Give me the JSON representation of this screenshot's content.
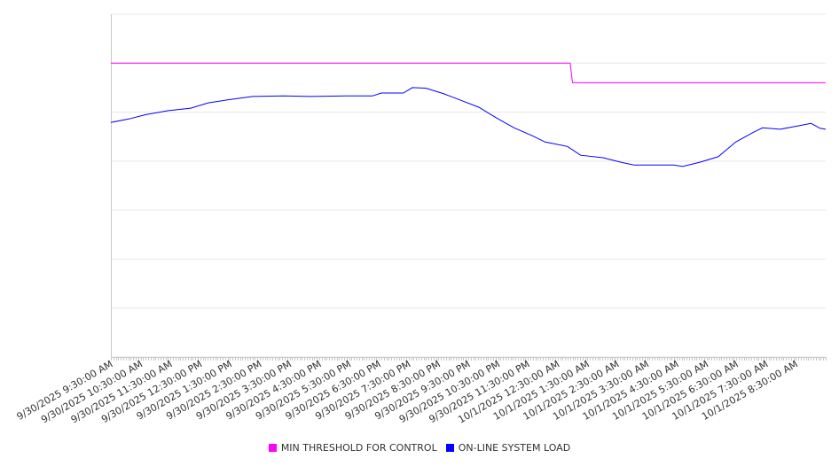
{
  "chart_data": {
    "type": "line",
    "title": "",
    "xlabel": "",
    "ylabel": "",
    "x_unit": "hours since 9/30/2025 9:30:00 AM",
    "xlim": [
      0,
      24
    ],
    "ylim": [
      0,
      7
    ],
    "y_ticks_labeled": false,
    "grid": true,
    "legend_position": "bottom",
    "x_tick_labels": [
      "9/30/2025 9:30:00 AM",
      "9/30/2025 10:30:00 AM",
      "9/30/2025 11:30:00 AM",
      "9/30/2025 12:30:00 PM",
      "9/30/2025 1:30:00 PM",
      "9/30/2025 2:30:00 PM",
      "9/30/2025 3:30:00 PM",
      "9/30/2025 4:30:00 PM",
      "9/30/2025 5:30:00 PM",
      "9/30/2025 6:30:00 PM",
      "9/30/2025 7:30:00 PM",
      "9/30/2025 8:30:00 PM",
      "9/30/2025 9:30:00 PM",
      "9/30/2025 10:30:00 PM",
      "9/30/2025 11:30:00 PM",
      "10/1/2025 12:30:00 AM",
      "10/1/2025 1:30:00 AM",
      "10/1/2025 2:30:00 AM",
      "10/1/2025 3:30:00 AM",
      "10/1/2025 4:30:00 AM",
      "10/1/2025 5:30:00 AM",
      "10/1/2025 6:30:00 AM",
      "10/1/2025 7:30:00 AM",
      "10/1/2025 8:30:00 AM"
    ],
    "series": [
      {
        "name": "MIN THRESHOLD FOR CONTROL",
        "color": "#ff00ff",
        "x": [
          0,
          15.42,
          15.5,
          24
        ],
        "y": [
          6.0,
          6.0,
          5.6,
          5.6
        ]
      },
      {
        "name": "ON-LINE SYSTEM LOAD",
        "color": "#0000ff",
        "x": [
          0,
          0.6,
          1.19,
          1.93,
          2.68,
          3.27,
          4.02,
          4.76,
          5.8,
          6.7,
          7.89,
          8.78,
          9.08,
          9.82,
          10.12,
          10.57,
          11.16,
          11.76,
          12.35,
          12.95,
          13.54,
          14.14,
          14.58,
          15.33,
          15.77,
          16.52,
          17.11,
          17.56,
          18.3,
          18.9,
          19.2,
          19.79,
          20.39,
          20.98,
          21.58,
          21.88,
          22.47,
          23.07,
          23.51,
          23.81,
          24
        ],
        "y": [
          4.79,
          4.86,
          4.95,
          5.03,
          5.08,
          5.19,
          5.26,
          5.32,
          5.33,
          5.32,
          5.33,
          5.33,
          5.39,
          5.39,
          5.5,
          5.49,
          5.38,
          5.24,
          5.1,
          4.88,
          4.68,
          4.52,
          4.39,
          4.3,
          4.12,
          4.07,
          3.98,
          3.92,
          3.92,
          3.92,
          3.89,
          3.98,
          4.09,
          4.39,
          4.59,
          4.68,
          4.65,
          4.72,
          4.77,
          4.67,
          4.65
        ]
      }
    ]
  }
}
